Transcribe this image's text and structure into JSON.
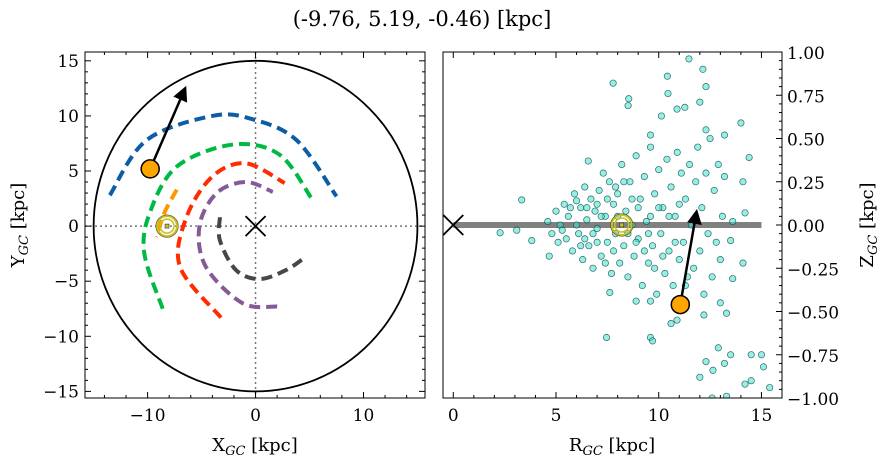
{
  "title": "(-9.76, 5.19, -0.46) [kpc]",
  "colors": {
    "blue": "#0C5DA5",
    "green": "#00B945",
    "orange": "#FF9500",
    "red": "#FF2C00",
    "purple": "#845B97",
    "dark_gray": "#474747",
    "gray": "#9e9e9e",
    "target": "#FFA500",
    "sun": "#C8C020",
    "scatter": "#40E0D0"
  },
  "chart_data": [
    {
      "type": "line",
      "panel": "left",
      "xlabel_main": "X",
      "xlabel_sub": "GC",
      "xlabel_unit": " [kpc]",
      "ylabel_main": "Y",
      "ylabel_sub": "GC",
      "ylabel_unit": " [kpc]",
      "xlim": [
        -15.8,
        15.7
      ],
      "ylim": [
        -15.6,
        15.8
      ],
      "xticks": [
        -10,
        0,
        10
      ],
      "yticks": [
        15,
        10,
        5,
        0,
        -5,
        -10,
        -15
      ],
      "xtick_labels": [
        "−10",
        "0",
        "10"
      ],
      "ytick_labels": [
        "15",
        "10",
        "5",
        "0",
        "−5",
        "−10",
        "−15"
      ],
      "boundary_circle_radius": 15,
      "reference_lines": {
        "x": 0,
        "y": 0,
        "style": "dotted"
      },
      "arms": [
        {
          "color": "blue",
          "points": [
            [
              -13.5,
              2.8
            ],
            [
              -10.1,
              7.8
            ],
            [
              -4,
              10
            ],
            [
              -0.3,
              9.7
            ],
            [
              3.8,
              7.8
            ],
            [
              7.5,
              2.7
            ]
          ]
        },
        {
          "color": "green",
          "points": [
            [
              -8.6,
              -7.5
            ],
            [
              -10.3,
              -2.5
            ],
            [
              -9.8,
              1.2
            ],
            [
              -7.3,
              5.4
            ],
            [
              -2.1,
              7.4
            ],
            [
              2.2,
              6.5
            ],
            [
              5.2,
              2.5
            ]
          ]
        },
        {
          "color": "orange",
          "points": [
            [
              -7.3,
              3.3
            ],
            [
              -8.4,
              1.3
            ],
            [
              -9.2,
              -1
            ]
          ]
        },
        {
          "color": "red",
          "points": [
            [
              -3.2,
              -8.3
            ],
            [
              -7,
              -3.7
            ],
            [
              -6.4,
              0.8
            ],
            [
              -4,
              4.5
            ],
            [
              -0.9,
              5.7
            ],
            [
              2.7,
              3.9
            ]
          ]
        },
        {
          "color": "purple",
          "points": [
            [
              2.0,
              -7.3
            ],
            [
              -1.2,
              -7.0
            ],
            [
              -4.6,
              -3.7
            ],
            [
              -5.2,
              0
            ],
            [
              -3.6,
              3
            ],
            [
              -0.9,
              4.0
            ],
            [
              1.6,
              3.1
            ]
          ]
        },
        {
          "color": "dark_gray",
          "points": [
            [
              -3.3,
              0.8
            ],
            [
              -3.3,
              -1.3
            ],
            [
              -1.8,
              -4.0
            ],
            [
              0.4,
              -4.8
            ],
            [
              2.8,
              -4.0
            ],
            [
              4.5,
              -2.9
            ]
          ]
        }
      ],
      "galactic_center": [
        0,
        0
      ],
      "sun": [
        -8.2,
        0
      ],
      "target": [
        -9.76,
        5.19
      ],
      "velocity_arrow_end": [
        -6.7,
        12.1
      ]
    },
    {
      "type": "scatter",
      "panel": "right",
      "xlabel_main": "R",
      "xlabel_sub": "GC",
      "xlabel_unit": " [kpc]",
      "ylabel_main": "Z",
      "ylabel_sub": "GC",
      "ylabel_unit": " [kpc]",
      "xlim": [
        -0.5,
        16
      ],
      "ylim": [
        -1,
        1
      ],
      "xticks": [
        0,
        5,
        10,
        15
      ],
      "xtick_labels": [
        "0",
        "5",
        "10",
        "15"
      ],
      "yticks": [
        1,
        0.75,
        0.5,
        0.25,
        0,
        -0.25,
        -0.5,
        -0.75,
        -1
      ],
      "ytick_labels": [
        "1.00",
        "0.75",
        "0.50",
        "0.25",
        "0.00",
        "−0.25",
        "−0.50",
        "−0.75",
        "−1.00"
      ],
      "yaxis_side": "right",
      "disk_line": {
        "x": [
          0,
          15
        ],
        "z": 0
      },
      "galactic_center": [
        0,
        0
      ],
      "sun": [
        8.2,
        0
      ],
      "target": [
        11.05,
        -0.46
      ],
      "velocity_arrow_end": [
        11.8,
        0.05
      ],
      "points": [
        [
          11.47,
          0.96
        ],
        [
          12.15,
          0.9
        ],
        [
          10.42,
          0.86
        ],
        [
          7.78,
          0.82
        ],
        [
          12.3,
          0.8
        ],
        [
          10.45,
          0.76
        ],
        [
          8.54,
          0.73
        ],
        [
          12.0,
          0.71
        ],
        [
          11.27,
          0.68
        ],
        [
          8.51,
          0.69
        ],
        [
          10.13,
          0.63
        ],
        [
          10.89,
          0.67
        ],
        [
          14.0,
          0.59
        ],
        [
          12.3,
          0.55
        ],
        [
          13.2,
          0.52
        ],
        [
          9.6,
          0.52
        ],
        [
          6.57,
          0.37
        ],
        [
          14.4,
          0.39
        ],
        [
          3.33,
          0.145
        ],
        [
          2.28,
          -0.045
        ],
        [
          3.09,
          -0.03
        ],
        [
          3.82,
          -0.09
        ],
        [
          4.67,
          -0.18
        ],
        [
          7.46,
          -0.65
        ],
        [
          9.6,
          -0.65
        ],
        [
          9.7,
          -0.67
        ],
        [
          12.9,
          -0.71
        ],
        [
          12.3,
          -0.79
        ],
        [
          13.5,
          -0.75
        ],
        [
          14.5,
          -0.75
        ],
        [
          15.0,
          -0.75
        ],
        [
          15.1,
          -0.82
        ],
        [
          14.5,
          -0.9
        ],
        [
          14.2,
          -0.92
        ],
        [
          15.4,
          -0.94
        ],
        [
          12.0,
          -0.88
        ],
        [
          12.64,
          -0.84
        ],
        [
          13.2,
          -0.8
        ],
        [
          12.6,
          -1.0
        ],
        [
          13.3,
          -0.99
        ],
        [
          10.89,
          -0.55
        ],
        [
          10.6,
          -0.57
        ],
        [
          12.2,
          -0.52
        ],
        [
          13.3,
          -0.51
        ],
        [
          14.1,
          0.25
        ],
        [
          14.2,
          0.07
        ],
        [
          13.6,
          0.02
        ],
        [
          13.5,
          -0.09
        ],
        [
          14.1,
          -0.22
        ],
        [
          13.6,
          -0.31
        ],
        [
          7.62,
          -0.39
        ],
        [
          8.9,
          -0.44
        ],
        [
          9.6,
          -0.44
        ],
        [
          4.6,
          0.02
        ],
        [
          4.8,
          -0.05
        ],
        [
          5.0,
          0.08
        ],
        [
          5.1,
          -0.1
        ],
        [
          5.2,
          0.0
        ],
        [
          5.4,
          0.12
        ],
        [
          5.5,
          -0.08
        ],
        [
          5.6,
          0.05
        ],
        [
          5.8,
          -0.15
        ],
        [
          5.9,
          0.18
        ],
        [
          6.0,
          0.0
        ],
        [
          6.1,
          -0.05
        ],
        [
          6.2,
          0.1
        ],
        [
          6.3,
          -0.2
        ],
        [
          6.4,
          0.22
        ],
        [
          6.5,
          0.03
        ],
        [
          6.6,
          -0.12
        ],
        [
          6.7,
          0.15
        ],
        [
          6.8,
          -0.25
        ],
        [
          6.9,
          0.08
        ],
        [
          7.0,
          -0.02
        ],
        [
          7.1,
          0.2
        ],
        [
          7.2,
          -0.18
        ],
        [
          7.3,
          0.3
        ],
        [
          7.4,
          0.05
        ],
        [
          7.5,
          -0.1
        ],
        [
          7.6,
          0.25
        ],
        [
          7.7,
          -0.28
        ],
        [
          7.8,
          0.12
        ],
        [
          7.9,
          -0.05
        ],
        [
          8.0,
          0.18
        ],
        [
          8.1,
          -0.22
        ],
        [
          8.2,
          0.35
        ],
        [
          8.3,
          -0.12
        ],
        [
          8.4,
          0.08
        ],
        [
          8.5,
          -0.3
        ],
        [
          8.6,
          0.25
        ],
        [
          8.7,
          0.0
        ],
        [
          8.8,
          -0.18
        ],
        [
          8.9,
          0.4
        ],
        [
          9.0,
          -0.08
        ],
        [
          9.1,
          0.15
        ],
        [
          9.2,
          -0.35
        ],
        [
          9.3,
          0.28
        ],
        [
          9.4,
          0.02
        ],
        [
          9.5,
          -0.22
        ],
        [
          9.6,
          0.45
        ],
        [
          9.7,
          -0.12
        ],
        [
          9.8,
          0.18
        ],
        [
          9.9,
          -0.4
        ],
        [
          10.0,
          0.32
        ],
        [
          10.1,
          -0.05
        ],
        [
          10.2,
          0.1
        ],
        [
          10.3,
          -0.28
        ],
        [
          10.4,
          0.38
        ],
        [
          10.5,
          -0.15
        ],
        [
          10.6,
          0.22
        ],
        [
          10.7,
          -0.35
        ],
        [
          10.8,
          0.05
        ],
        [
          10.9,
          0.42
        ],
        [
          11.0,
          -0.2
        ],
        [
          11.1,
          0.3
        ],
        [
          11.2,
          -0.1
        ],
        [
          11.3,
          0.15
        ],
        [
          11.4,
          -0.3
        ],
        [
          11.5,
          0.35
        ],
        [
          11.6,
          0.0
        ],
        [
          11.7,
          -0.25
        ],
        [
          11.8,
          0.25
        ],
        [
          11.9,
          0.45
        ],
        [
          12.0,
          -0.15
        ],
        [
          12.1,
          0.1
        ],
        [
          12.2,
          -0.4
        ],
        [
          12.3,
          0.3
        ],
        [
          12.4,
          -0.05
        ],
        [
          12.5,
          0.5
        ],
        [
          12.6,
          -0.3
        ],
        [
          12.7,
          0.2
        ],
        [
          12.8,
          -0.1
        ],
        [
          12.9,
          0.35
        ],
        [
          13.0,
          -0.45
        ],
        [
          13.1,
          0.05
        ],
        [
          13.2,
          0.28
        ],
        [
          13.0,
          -0.2
        ],
        [
          6.5,
          0.1
        ],
        [
          7.0,
          -0.1
        ],
        [
          7.5,
          0.15
        ],
        [
          8.0,
          0.05
        ],
        [
          8.5,
          -0.05
        ],
        [
          9.0,
          0.1
        ],
        [
          9.5,
          -0.05
        ],
        [
          10.0,
          0.1
        ],
        [
          7.2,
          0.05
        ],
        [
          6.8,
          -0.05
        ],
        [
          9.3,
          -0.15
        ],
        [
          8.7,
          0.15
        ],
        [
          7.8,
          -0.15
        ],
        [
          10.5,
          0.05
        ],
        [
          6.2,
          -0.12
        ],
        [
          5.7,
          0.1
        ],
        [
          9.8,
          -0.25
        ],
        [
          8.3,
          0.25
        ],
        [
          7.0,
          0.12
        ],
        [
          10.2,
          -0.18
        ],
        [
          5.3,
          -0.03
        ],
        [
          6.0,
          0.14
        ],
        [
          7.4,
          -0.22
        ],
        [
          8.9,
          -0.1
        ],
        [
          9.6,
          0.05
        ],
        [
          10.8,
          -0.1
        ],
        [
          11.3,
          -0.35
        ],
        [
          11.0,
          0.12
        ],
        [
          6.4,
          -0.08
        ],
        [
          7.9,
          0.22
        ]
      ]
    }
  ]
}
